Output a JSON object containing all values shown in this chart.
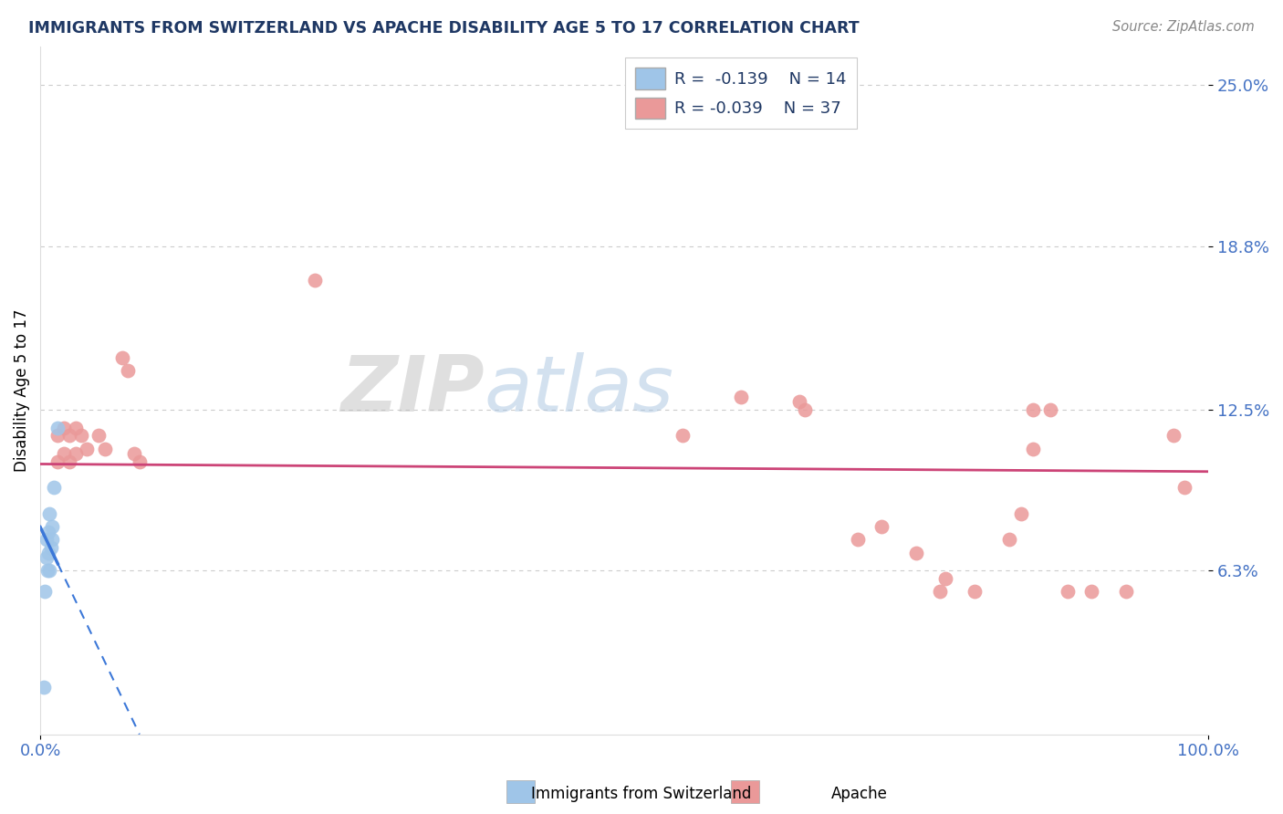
{
  "title": "IMMIGRANTS FROM SWITZERLAND VS APACHE DISABILITY AGE 5 TO 17 CORRELATION CHART",
  "source_text": "Source: ZipAtlas.com",
  "ylabel": "Disability Age 5 to 17",
  "xlim": [
    0,
    100
  ],
  "ylim": [
    0,
    26.5
  ],
  "ytick_vals": [
    6.3,
    12.5,
    18.8,
    25.0
  ],
  "ytick_labels": [
    "6.3%",
    "12.5%",
    "18.8%",
    "25.0%"
  ],
  "xtick_vals": [
    0,
    100
  ],
  "xtick_labels": [
    "0.0%",
    "100.0%"
  ],
  "legend_r1": "R =  -0.139",
  "legend_n1": "N = 14",
  "legend_r2": "R = -0.039",
  "legend_n2": "N = 37",
  "blue_color": "#9fc5e8",
  "pink_color": "#ea9999",
  "blue_line_color": "#3c78d8",
  "pink_line_color": "#cc4477",
  "tick_color": "#4472c4",
  "title_color": "#1f3864",
  "blue_scatter_x": [
    0.3,
    0.5,
    0.5,
    0.6,
    0.7,
    0.7,
    0.8,
    0.8,
    0.9,
    1.0,
    1.0,
    1.2,
    1.5,
    0.4
  ],
  "blue_scatter_y": [
    1.8,
    7.5,
    6.8,
    6.3,
    7.8,
    7.0,
    8.5,
    6.3,
    7.2,
    8.0,
    7.5,
    9.5,
    11.8,
    5.5
  ],
  "pink_scatter_x": [
    1.5,
    1.5,
    2.0,
    2.0,
    2.5,
    2.5,
    3.0,
    3.0,
    3.5,
    4.0,
    5.0,
    5.5,
    7.0,
    7.5,
    8.0,
    8.5,
    23.5,
    85.0,
    86.5,
    55.0,
    60.0,
    65.0,
    65.5,
    70.0,
    72.0,
    75.0,
    77.0,
    77.5,
    80.0,
    83.0,
    84.0,
    85.0,
    88.0,
    90.0,
    93.0,
    97.0,
    98.0
  ],
  "pink_scatter_y": [
    11.5,
    10.5,
    11.8,
    10.8,
    11.5,
    10.5,
    11.8,
    10.8,
    11.5,
    11.0,
    11.5,
    11.0,
    14.5,
    14.0,
    10.8,
    10.5,
    17.5,
    12.5,
    12.5,
    11.5,
    13.0,
    12.8,
    12.5,
    7.5,
    8.0,
    7.0,
    5.5,
    6.0,
    5.5,
    7.5,
    8.5,
    11.0,
    5.5,
    5.5,
    5.5,
    11.5,
    9.5
  ],
  "pink_line_x0": 0,
  "pink_line_x1": 100,
  "pink_line_y0": 11.5,
  "pink_line_y1": 10.5,
  "blue_line_solid_x0": 0,
  "blue_line_solid_x1": 1.5,
  "blue_line_y0": 8.5,
  "blue_line_y1": 7.5,
  "blue_line_dash_x1": 35,
  "blue_line_dash_y1": 0
}
